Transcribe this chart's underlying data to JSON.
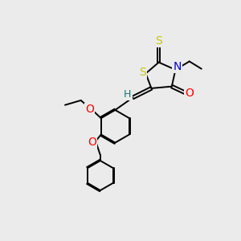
{
  "bg_color": "#ebebeb",
  "atom_colors": {
    "S": "#c8c800",
    "N": "#0000e0",
    "O": "#ff0000",
    "H": "#008080",
    "C": "#000000"
  },
  "bond_color": "#000000",
  "bond_width": 1.4
}
